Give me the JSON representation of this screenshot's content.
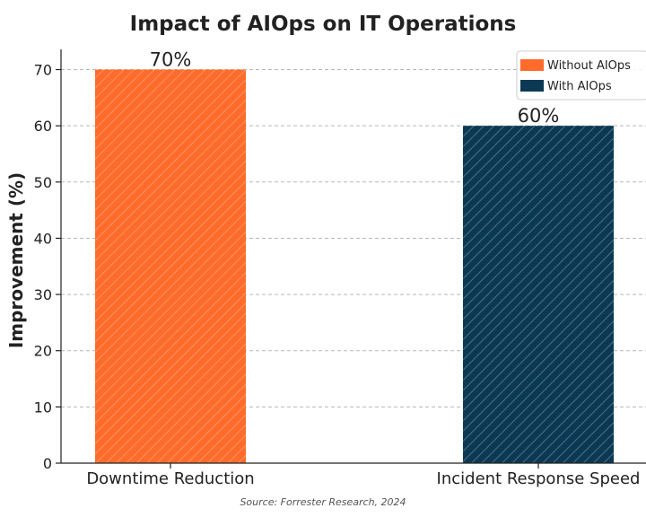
{
  "chart_data": {
    "type": "bar",
    "title": "Impact of AIOps on IT Operations",
    "ylabel": "Improvement (%)",
    "xlabel": "",
    "categories": [
      "Downtime Reduction",
      "Incident Response Speed"
    ],
    "series": [
      {
        "name": "Without AIOps",
        "values": [
          70,
          null
        ],
        "color": "#ff6b2b"
      },
      {
        "name": "With AIOps",
        "values": [
          null,
          60
        ],
        "color": "#0b3954"
      }
    ],
    "data_labels": [
      "70%",
      "60%"
    ],
    "ylim": [
      0,
      72
    ],
    "yticks": [
      0,
      10,
      20,
      30,
      40,
      50,
      60,
      70
    ],
    "grid": "y-dashed",
    "legend_position": "top-right",
    "bar_pattern": "diagonal-hatch",
    "source": "Source: Forrester Research, 2024"
  }
}
